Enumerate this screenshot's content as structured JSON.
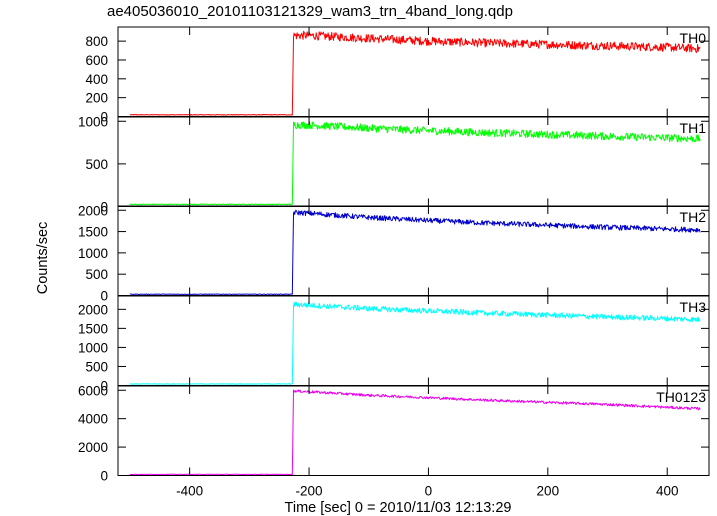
{
  "chart_data": {
    "type": "line",
    "title": "ae405036010_20101103121329_wam3_trn_4band_long.qdp",
    "xlabel": "Time [sec] 0 = 2010/11/03 12:13:29",
    "ylabel": "Counts/sec",
    "xlim": [
      -520,
      470
    ],
    "x_ticks": [
      -400,
      -200,
      0,
      200,
      400
    ],
    "grid": false,
    "trigger_time": -228,
    "panels": [
      {
        "name": "TH0",
        "color": "#ff0000",
        "ylim": [
          0,
          950
        ],
        "y_ticks": [
          0,
          200,
          400,
          600,
          800
        ],
        "pre_level": 18,
        "x": [
          -500,
          -228,
          -226,
          -200,
          -100,
          0,
          100,
          200,
          300,
          400,
          455
        ],
        "y": [
          18,
          18,
          860,
          860,
          830,
          800,
          780,
          765,
          750,
          735,
          720
        ],
        "noise": 45
      },
      {
        "name": "TH1",
        "color": "#00ff00",
        "ylim": [
          0,
          1050
        ],
        "y_ticks": [
          0,
          500,
          1000
        ],
        "pre_level": 25,
        "x": [
          -500,
          -228,
          -226,
          -200,
          -100,
          0,
          100,
          200,
          300,
          400,
          455
        ],
        "y": [
          25,
          25,
          960,
          955,
          920,
          890,
          865,
          845,
          825,
          805,
          795
        ],
        "noise": 45
      },
      {
        "name": "TH2",
        "color": "#0000cc",
        "ylim": [
          0,
          2100
        ],
        "y_ticks": [
          0,
          500,
          1000,
          1500,
          2000
        ],
        "pre_level": 30,
        "x": [
          -500,
          -228,
          -226,
          -200,
          -100,
          0,
          100,
          200,
          300,
          400,
          455
        ],
        "y": [
          30,
          30,
          1950,
          1930,
          1830,
          1760,
          1700,
          1650,
          1600,
          1560,
          1540
        ],
        "noise": 60
      },
      {
        "name": "TH3",
        "color": "#00ffff",
        "ylim": [
          0,
          2350
        ],
        "y_ticks": [
          0,
          500,
          1000,
          1500,
          2000
        ],
        "pre_level": 40,
        "x": [
          -500,
          -228,
          -226,
          -200,
          -100,
          0,
          100,
          200,
          300,
          400,
          455
        ],
        "y": [
          40,
          40,
          2130,
          2110,
          2020,
          1960,
          1900,
          1850,
          1800,
          1760,
          1730
        ],
        "noise": 70
      },
      {
        "name": "TH0123",
        "color": "#ee00ee",
        "ylim": [
          0,
          6300
        ],
        "y_ticks": [
          0,
          2000,
          4000,
          6000
        ],
        "pre_level": 80,
        "x": [
          -500,
          -228,
          -226,
          -200,
          -100,
          0,
          100,
          200,
          300,
          400,
          455
        ],
        "y": [
          80,
          80,
          5950,
          5900,
          5650,
          5480,
          5300,
          5150,
          5000,
          4800,
          4700
        ],
        "noise": 90
      }
    ]
  }
}
